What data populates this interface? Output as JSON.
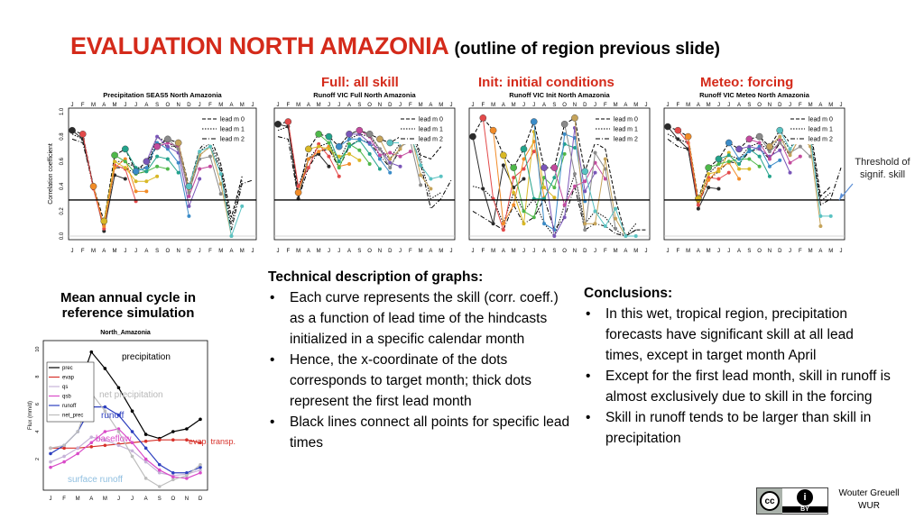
{
  "title": {
    "main": "EVALUATION NORTH AMAZONIA",
    "sub": "(outline of region previous slide)"
  },
  "panel_headings": {
    "full": "Full: all skill",
    "init": "Init: initial conditions",
    "meteo": "Meteo: forcing"
  },
  "side_note": {
    "line1": "Threshold of",
    "line2": "signif. skill"
  },
  "annual_cycle_heading": {
    "line1": "Mean annual cycle in",
    "line2": "reference simulation"
  },
  "technical": {
    "heading": "Technical description of graphs:",
    "bullets": [
      "Each curve represents the skill (corr. coeff.) as a function of lead time of the hindcasts initialized in a specific calendar month",
      "Hence, the x-coordinate of the dots corresponds to target month; thick dots represent the first lead month",
      "Black lines connect all points for specific lead times"
    ]
  },
  "conclusions": {
    "heading": "Conclusions:",
    "bullets": [
      "In this wet, tropical region, precipitation forecasts have significant skill at all lead times, except in target month April",
      "Except for the first lead month, skill in runoff is almost exclusively due to skill in the forcing",
      "Skill in runoff tends to be larger than skill in precipitation"
    ]
  },
  "license": {
    "cc": "cc",
    "by": "BY",
    "person": "i"
  },
  "author": {
    "line1": "Wouter Greuell",
    "line2": "WUR"
  },
  "chart_data": [
    {
      "type": "line",
      "title": "Precipitation  SEAS5  North Amazonia",
      "ylabel": "Correlation coefficient",
      "yticks": [
        "0.0",
        "0.2",
        "0.4",
        "0.6",
        "0.8",
        "1.0"
      ],
      "ylim": [
        0,
        1
      ],
      "months": [
        "J",
        "F",
        "M",
        "A",
        "M",
        "J",
        "J",
        "A",
        "S",
        "O",
        "N",
        "D",
        "J",
        "F",
        "M",
        "A",
        "M",
        "J"
      ],
      "threshold": 0.29,
      "legend": [
        "lead m 0",
        "lead m 1",
        "lead m 2"
      ],
      "series": [
        {
          "values": [
            0.85,
            0.82,
            0.4,
            0.12,
            0.65,
            0.7,
            0.52,
            0.6,
            0.72,
            0.78,
            0.75,
            0.4,
            0.7,
            0.8,
            0.58,
            0.15,
            0.48,
            null
          ]
        },
        {
          "values": [
            0.82,
            0.78,
            0.38,
            0.08,
            0.6,
            0.6,
            0.55,
            0.55,
            0.8,
            0.75,
            0.7,
            0.38,
            0.68,
            0.75,
            0.55,
            0.1,
            0.45,
            null
          ]
        },
        {
          "values": [
            0.78,
            0.75,
            0.4,
            0.06,
            0.55,
            0.55,
            0.5,
            0.52,
            0.75,
            0.72,
            0.72,
            0.35,
            0.65,
            0.72,
            0.52,
            0.05,
            0.42,
            0.45
          ]
        }
      ]
    },
    {
      "type": "line",
      "title": "Runoff  VIC  Full  North Amazonia",
      "yticks": [],
      "ylim": [
        0,
        1
      ],
      "months": [
        "J",
        "F",
        "M",
        "A",
        "M",
        "J",
        "J",
        "A",
        "S",
        "O",
        "N",
        "D",
        "J",
        "F",
        "M",
        "A",
        "M",
        "J"
      ],
      "threshold": 0.29,
      "legend": [
        "lead m 0",
        "lead m 1",
        "lead m 2"
      ],
      "series": [
        {
          "values": [
            0.9,
            0.92,
            0.35,
            0.7,
            0.82,
            0.8,
            0.72,
            0.82,
            0.85,
            0.82,
            0.78,
            0.75,
            0.8,
            0.92,
            0.65,
            0.62,
            0.72,
            null
          ]
        },
        {
          "values": [
            0.85,
            0.88,
            0.4,
            0.62,
            0.72,
            0.75,
            0.6,
            0.78,
            0.82,
            0.8,
            0.7,
            0.62,
            0.75,
            0.88,
            0.62,
            0.3,
            0.35,
            null
          ]
        },
        {
          "values": [
            0.8,
            0.78,
            0.3,
            0.55,
            0.68,
            0.7,
            0.55,
            0.72,
            0.78,
            0.75,
            0.65,
            0.55,
            0.7,
            0.82,
            0.58,
            0.22,
            0.3,
            0.45
          ]
        }
      ]
    },
    {
      "type": "line",
      "title": "Runoff  VIC  Init  North Amazonia",
      "yticks": [],
      "ylim": [
        0,
        1
      ],
      "months": [
        "J",
        "F",
        "M",
        "A",
        "M",
        "J",
        "J",
        "A",
        "S",
        "O",
        "N",
        "D",
        "J",
        "F",
        "M",
        "A",
        "M",
        "J"
      ],
      "threshold": 0.29,
      "legend": [
        "lead m 0",
        "lead m 1",
        "lead m 2"
      ],
      "series": [
        {
          "values": [
            0.8,
            0.95,
            0.85,
            0.65,
            0.55,
            0.7,
            0.92,
            0.55,
            0.55,
            0.9,
            0.95,
            0.52,
            0.75,
            0.7,
            0.3,
            0.0,
            0.05,
            0.05
          ]
        },
        {
          "values": [
            0.4,
            0.38,
            0.3,
            0.1,
            0.35,
            0.2,
            0.3,
            0.1,
            0.0,
            0.25,
            0.5,
            0.1,
            0.2,
            0.15,
            0.05,
            0.0,
            0.1,
            null
          ]
        },
        {
          "values": [
            0.2,
            0.15,
            0.1,
            0.05,
            0.25,
            0.1,
            0.15,
            0.3,
            0.05,
            0.15,
            0.4,
            0.05,
            0.1,
            0.08,
            0.02,
            0.0,
            0.05,
            null
          ]
        }
      ]
    },
    {
      "type": "line",
      "title": "Runoff  VIC  Meteo  North Amazonia",
      "yticks": [],
      "ylim": [
        0,
        1
      ],
      "months": [
        "J",
        "F",
        "M",
        "A",
        "M",
        "J",
        "J",
        "A",
        "S",
        "O",
        "N",
        "D",
        "J",
        "F",
        "M",
        "A",
        "M",
        "J"
      ],
      "threshold": 0.29,
      "legend": [
        "lead m 0",
        "lead m 1",
        "lead m 2"
      ],
      "series": [
        {
          "values": [
            0.88,
            0.85,
            0.8,
            0.3,
            0.55,
            0.62,
            0.75,
            0.7,
            0.78,
            0.8,
            0.72,
            0.85,
            0.75,
            0.88,
            0.88,
            0.32,
            0.4,
            null
          ]
        },
        {
          "values": [
            0.82,
            0.78,
            0.75,
            0.28,
            0.5,
            0.58,
            0.65,
            0.62,
            0.72,
            0.75,
            0.68,
            0.8,
            0.7,
            0.85,
            0.82,
            0.28,
            0.35,
            null
          ]
        },
        {
          "values": [
            0.78,
            0.72,
            0.7,
            0.25,
            0.45,
            0.52,
            0.6,
            0.58,
            0.68,
            0.7,
            0.62,
            0.75,
            0.65,
            0.8,
            0.78,
            0.25,
            0.3,
            0.55
          ]
        }
      ]
    },
    {
      "type": "line",
      "title": "North_Amazonia",
      "ylabel": "Flux (mm/d)",
      "yticks": [
        "2",
        "4",
        "6",
        "8",
        "10"
      ],
      "ylim": [
        0,
        10
      ],
      "months": [
        "J",
        "F",
        "M",
        "A",
        "M",
        "J",
        "J",
        "A",
        "S",
        "O",
        "N",
        "D"
      ],
      "legend": [
        "prec",
        "evap",
        "qs",
        "qsb",
        "runoff",
        "net_prec"
      ],
      "annotations": [
        "precipitation",
        "net precipitation",
        "runoff",
        "baseflow",
        "evap. transp.",
        "surface runoff"
      ],
      "series": [
        {
          "name": "prec",
          "values": [
            5.5,
            5.8,
            7.0,
            9.8,
            8.6,
            7.2,
            5.5,
            3.8,
            3.5,
            4.0,
            4.2,
            4.9
          ]
        },
        {
          "name": "evap",
          "values": [
            2.8,
            2.8,
            2.8,
            2.9,
            3.0,
            3.1,
            3.2,
            3.3,
            3.4,
            3.4,
            3.4,
            3.2
          ]
        },
        {
          "name": "qs",
          "values": [
            1.8,
            2.2,
            2.8,
            3.6,
            3.4,
            3.0,
            2.6,
            1.8,
            1.0,
            0.8,
            0.9,
            1.2
          ]
        },
        {
          "name": "qsb",
          "values": [
            1.4,
            1.8,
            2.4,
            3.2,
            4.0,
            4.2,
            3.2,
            2.0,
            1.2,
            0.7,
            0.6,
            1.0
          ]
        },
        {
          "name": "runoff",
          "values": [
            2.4,
            3.0,
            4.0,
            5.8,
            5.8,
            5.2,
            4.0,
            2.8,
            1.6,
            1.0,
            1.0,
            1.4
          ]
        },
        {
          "name": "net_prec",
          "values": [
            2.8,
            3.0,
            4.0,
            6.8,
            5.5,
            4.0,
            2.2,
            0.6,
            0.0,
            0.5,
            0.8,
            1.6
          ]
        }
      ]
    }
  ],
  "colors": {
    "title_red": "#d42a1a",
    "lead_series": [
      "#2a2a2a",
      "#e34a4a",
      "#f28c28",
      "#d9b826",
      "#4fb84a",
      "#23a38b",
      "#3b8cc8",
      "#7a56b8",
      "#c34a9d",
      "#8a8a8a",
      "#c5a35a",
      "#5ac2c2"
    ],
    "annual_series": {
      "prec": "#000000",
      "evap": "#d7312a",
      "qs": "#c6b3d8",
      "qsb": "#d94cc8",
      "runoff": "#2d3fbf",
      "net_prec": "#bdbdbd"
    }
  }
}
